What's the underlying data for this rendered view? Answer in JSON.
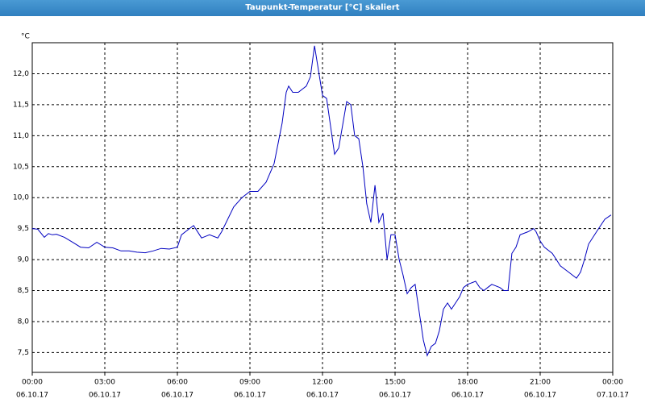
{
  "chart_data": {
    "type": "line",
    "title": "Taupunkt-Temperatur [°C] skaliert",
    "y_unit": "°C",
    "x": [
      0,
      0.23,
      0.5,
      0.67,
      0.83,
      1,
      1.33,
      1.67,
      2,
      2.33,
      2.67,
      3,
      3.33,
      3.67,
      4,
      4.33,
      4.67,
      5,
      5.33,
      5.67,
      6,
      6.17,
      6.5,
      6.67,
      7,
      7.33,
      7.67,
      7.83,
      8.33,
      8.67,
      9,
      9.33,
      9.67,
      10,
      10.33,
      10.5,
      10.6,
      10.77,
      11,
      11.33,
      11.5,
      11.67,
      12,
      12.17,
      12.5,
      12.67,
      13,
      13.17,
      13.33,
      13.5,
      13.67,
      13.83,
      14,
      14.17,
      14.33,
      14.5,
      14.67,
      14.83,
      15,
      15.17,
      15.33,
      15.5,
      15.67,
      15.83,
      16,
      16.17,
      16.33,
      16.5,
      16.67,
      16.83,
      17,
      17.17,
      17.33,
      17.5,
      17.67,
      17.83,
      18,
      18.33,
      18.5,
      18.67,
      18.83,
      19,
      19.33,
      19.5,
      19.67,
      19.83,
      20,
      20.17,
      20.5,
      20.73,
      20.83,
      21,
      21.17,
      21.5,
      21.67,
      21.83,
      22.17,
      22.5,
      22.67,
      22.83,
      23,
      23.33,
      23.67,
      23.93
    ],
    "series": [
      {
        "name": "Taupunkt",
        "color": "#0000c0",
        "values": [
          9.5,
          9.49,
          9.36,
          9.42,
          9.4,
          9.41,
          9.36,
          9.28,
          9.2,
          9.19,
          9.28,
          9.2,
          9.19,
          9.14,
          9.14,
          9.12,
          9.11,
          9.14,
          9.18,
          9.17,
          9.2,
          9.4,
          9.5,
          9.55,
          9.35,
          9.4,
          9.35,
          9.45,
          9.85,
          10.0,
          10.1,
          10.1,
          10.25,
          10.55,
          11.2,
          11.7,
          11.8,
          11.7,
          11.7,
          11.8,
          11.95,
          12.45,
          11.65,
          11.6,
          10.7,
          10.8,
          11.55,
          11.5,
          11.0,
          10.95,
          10.5,
          9.9,
          9.6,
          10.2,
          9.6,
          9.75,
          9.0,
          9.4,
          9.4,
          9.0,
          8.75,
          8.45,
          8.55,
          8.6,
          8.15,
          7.7,
          7.45,
          7.6,
          7.65,
          7.85,
          8.2,
          8.3,
          8.2,
          8.3,
          8.4,
          8.55,
          8.6,
          8.65,
          8.55,
          8.5,
          8.55,
          8.6,
          8.55,
          8.5,
          8.5,
          9.1,
          9.2,
          9.4,
          9.45,
          9.5,
          9.45,
          9.3,
          9.2,
          9.1,
          9.0,
          8.9,
          8.8,
          8.7,
          8.8,
          9.0,
          9.25,
          9.45,
          9.65,
          9.72
        ]
      }
    ],
    "xlim": [
      0,
      24
    ],
    "xticks": [
      {
        "value": 0,
        "label": "00:00",
        "date": "06.10.17"
      },
      {
        "value": 3,
        "label": "03:00",
        "date": "06.10.17"
      },
      {
        "value": 6,
        "label": "06:00",
        "date": "06.10.17"
      },
      {
        "value": 9,
        "label": "09:00",
        "date": "06.10.17"
      },
      {
        "value": 12,
        "label": "12:00",
        "date": "06.10.17"
      },
      {
        "value": 15,
        "label": "15:00",
        "date": "06.10.17"
      },
      {
        "value": 18,
        "label": "18:00",
        "date": "06.10.17"
      },
      {
        "value": 21,
        "label": "21:00",
        "date": "06.10.17"
      },
      {
        "value": 24,
        "label": "00:00",
        "date": "07.10.17"
      }
    ],
    "ylim": [
      7.18,
      12.5
    ],
    "yticks": [
      {
        "value": 7.5,
        "label": "7,5"
      },
      {
        "value": 8,
        "label": "8,0"
      },
      {
        "value": 8.5,
        "label": "8,5"
      },
      {
        "value": 9,
        "label": "9,0"
      },
      {
        "value": 9.5,
        "label": "9,5"
      },
      {
        "value": 10,
        "label": "10,0"
      },
      {
        "value": 10.5,
        "label": "10,5"
      },
      {
        "value": 11,
        "label": "11,0"
      },
      {
        "value": 11.5,
        "label": "11,5"
      },
      {
        "value": 12,
        "label": "12,0"
      }
    ],
    "grid": true
  }
}
